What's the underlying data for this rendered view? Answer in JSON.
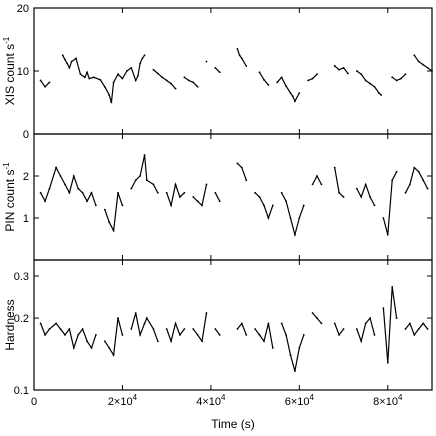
{
  "chart_data": [
    {
      "type": "line",
      "panel": "top",
      "ylabel": "XIS  count s",
      "ylabel_sup": "-1",
      "xlim": [
        0,
        90000
      ],
      "ylim": [
        0,
        20
      ],
      "yticks": [
        0,
        10,
        20
      ],
      "ytick_labels": [
        "0",
        "10",
        "20"
      ],
      "x": [
        1500,
        2500,
        3500,
        6500,
        7000,
        7500,
        8000,
        8500,
        9500,
        10500,
        11500,
        12000,
        12500,
        13500,
        15000,
        16000,
        17000,
        17500,
        18000,
        19000,
        20000,
        21000,
        22000,
        23000,
        23500,
        24000,
        24500,
        25000,
        27000,
        28000,
        29000,
        30000,
        31000,
        32000,
        34000,
        35000,
        36000,
        37000,
        39000,
        41000,
        42000,
        46000,
        46500,
        47000,
        48000,
        51000,
        52000,
        53000,
        55000,
        56000,
        57000,
        58000,
        58500,
        59000,
        60000,
        62000,
        63000,
        64000,
        68000,
        69000,
        70000,
        71000,
        73000,
        74000,
        75000,
        76000,
        77000,
        78000,
        78500,
        81000,
        82000,
        83000,
        84000,
        86000,
        87000,
        88000,
        89000,
        90000
      ],
      "y": [
        8.5,
        7.5,
        8.2,
        12.5,
        11.8,
        11.2,
        10.5,
        11.5,
        12.0,
        9.5,
        9.0,
        9.8,
        8.8,
        9.0,
        8.6,
        7.5,
        6.2,
        5.0,
        8.2,
        9.5,
        8.8,
        10.0,
        10.5,
        8.5,
        9.2,
        11.2,
        12.0,
        12.5,
        10.2,
        9.6,
        9.0,
        8.5,
        8.0,
        7.2,
        9.0,
        8.5,
        8.2,
        7.5,
        11.5,
        10.5,
        9.8,
        13.5,
        12.5,
        12.0,
        10.8,
        9.8,
        8.6,
        7.8,
        8.2,
        9.0,
        7.6,
        6.5,
        6.0,
        5.2,
        6.5,
        8.5,
        8.8,
        9.5,
        10.8,
        10.2,
        10.5,
        9.6,
        10.0,
        9.5,
        8.5,
        8.0,
        7.5,
        6.5,
        6.2,
        9.0,
        8.5,
        8.8,
        9.5,
        12.5,
        11.5,
        11.0,
        10.5,
        10.0
      ]
    },
    {
      "type": "line",
      "panel": "middle",
      "ylabel": "PIN  count s",
      "ylabel_sup": "-1",
      "xlim": [
        0,
        90000
      ],
      "ylim": [
        0,
        3
      ],
      "yticks": [
        1,
        2
      ],
      "ytick_labels": [
        "1",
        "2"
      ],
      "x": [
        1500,
        2500,
        3500,
        5000,
        6000,
        7000,
        8000,
        9000,
        10000,
        11000,
        12000,
        13000,
        14000,
        16000,
        17000,
        18000,
        19000,
        20000,
        22000,
        23000,
        24000,
        25000,
        25500,
        27000,
        28000,
        30000,
        31000,
        32000,
        33000,
        34000,
        36000,
        37000,
        38000,
        39000,
        41000,
        42000,
        46000,
        47000,
        48000,
        50000,
        51000,
        52000,
        53000,
        54000,
        56000,
        57000,
        58000,
        59000,
        60000,
        61000,
        63000,
        64000,
        65000,
        68000,
        69000,
        70000,
        73000,
        74000,
        75000,
        76000,
        77000,
        79000,
        80000,
        81000,
        82000,
        84000,
        85000,
        86000,
        87000,
        88000,
        89000
      ],
      "y": [
        1.6,
        1.4,
        1.7,
        2.2,
        2.0,
        1.8,
        1.6,
        2.0,
        1.7,
        1.6,
        1.4,
        1.6,
        1.3,
        1.2,
        0.9,
        0.7,
        1.6,
        1.3,
        1.7,
        1.9,
        2.0,
        2.5,
        1.9,
        1.8,
        1.6,
        1.6,
        1.3,
        1.8,
        1.5,
        1.6,
        1.5,
        1.4,
        1.3,
        1.8,
        1.6,
        1.4,
        2.3,
        2.2,
        1.9,
        1.6,
        1.5,
        1.3,
        1.0,
        1.3,
        1.6,
        1.4,
        1.0,
        0.6,
        1.0,
        1.3,
        1.8,
        2.0,
        1.8,
        2.2,
        1.6,
        1.5,
        1.7,
        1.5,
        1.8,
        1.5,
        1.3,
        1.0,
        0.6,
        1.9,
        2.1,
        1.6,
        1.8,
        2.2,
        2.1,
        1.9,
        1.7
      ]
    },
    {
      "type": "line",
      "panel": "bottom",
      "ylabel": "Hardness",
      "xlabel": "Time (s)",
      "xlim": [
        0,
        90000
      ],
      "ylim": [
        0.1,
        0.35
      ],
      "yscale": "log",
      "yticks": [
        0.1,
        0.2,
        0.3
      ],
      "ytick_labels": [
        "0.1",
        "0.2",
        "0.3"
      ],
      "xticks": [
        0,
        20000,
        40000,
        60000,
        80000
      ],
      "xtick_labels": [
        "0",
        "2×10",
        "4×10",
        "6×10",
        "8×10"
      ],
      "xtick_sup": [
        "",
        "4",
        "4",
        "4",
        "4"
      ],
      "x": [
        1500,
        2500,
        3500,
        5000,
        6000,
        7000,
        8000,
        9000,
        10000,
        11000,
        12000,
        13000,
        14000,
        16000,
        17000,
        18000,
        19000,
        20000,
        22000,
        23000,
        24000,
        25000,
        25500,
        27000,
        28000,
        30000,
        31000,
        32000,
        33000,
        34000,
        36000,
        37000,
        38000,
        39000,
        41000,
        42000,
        46000,
        47000,
        48000,
        50000,
        51000,
        52000,
        53000,
        54000,
        56000,
        57000,
        58000,
        59000,
        60000,
        61000,
        63000,
        64000,
        65000,
        68000,
        69000,
        70000,
        73000,
        74000,
        75000,
        76000,
        77000,
        79000,
        80000,
        81000,
        82000,
        84000,
        85000,
        86000,
        87000,
        88000,
        89000
      ],
      "y": [
        0.19,
        0.17,
        0.18,
        0.19,
        0.18,
        0.17,
        0.18,
        0.15,
        0.17,
        0.18,
        0.16,
        0.15,
        0.17,
        0.16,
        0.15,
        0.14,
        0.2,
        0.17,
        0.18,
        0.21,
        0.17,
        0.19,
        0.2,
        0.18,
        0.16,
        0.18,
        0.16,
        0.19,
        0.17,
        0.18,
        0.18,
        0.17,
        0.16,
        0.21,
        0.18,
        0.17,
        0.18,
        0.19,
        0.17,
        0.18,
        0.17,
        0.16,
        0.19,
        0.15,
        0.19,
        0.17,
        0.14,
        0.12,
        0.15,
        0.17,
        0.21,
        0.2,
        0.19,
        0.19,
        0.17,
        0.18,
        0.18,
        0.16,
        0.19,
        0.2,
        0.17,
        0.22,
        0.13,
        0.27,
        0.2,
        0.18,
        0.19,
        0.17,
        0.18,
        0.19,
        0.18
      ]
    }
  ]
}
